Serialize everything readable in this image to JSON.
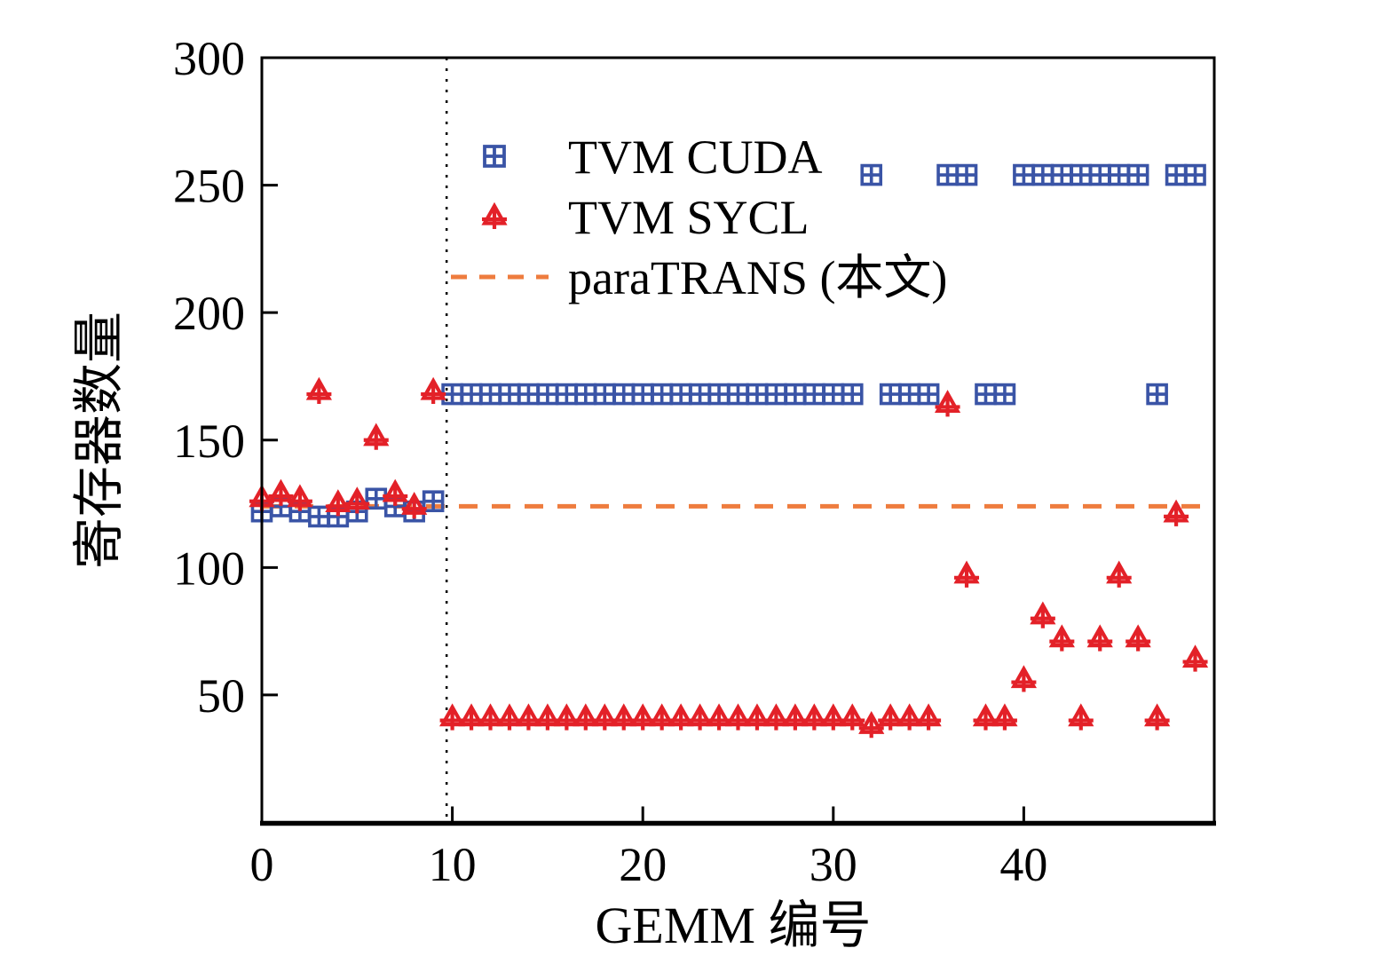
{
  "figure": {
    "background": "#ffffff"
  },
  "chart_data": {
    "type": "scatter",
    "title": "",
    "xlabel": "GEMM 编号",
    "ylabel": "寄存器数量",
    "xlim": [
      0,
      50
    ],
    "ylim": [
      0,
      300
    ],
    "xticks": [
      0,
      10,
      20,
      30,
      40
    ],
    "yticks": [
      50,
      100,
      150,
      200,
      250,
      300
    ],
    "grid": false,
    "legend_position": "upper-left-inside",
    "divider_vline": {
      "x": 9.7,
      "style": "dotted",
      "color": "#000000"
    },
    "series": [
      {
        "name": "TVM CUDA",
        "type": "scatter",
        "marker": "square-plus",
        "color": "#3a54a6",
        "x": [
          0,
          1,
          2,
          3,
          4,
          5,
          6,
          7,
          8,
          9,
          10,
          11,
          12,
          13,
          14,
          15,
          16,
          17,
          18,
          19,
          20,
          21,
          22,
          23,
          24,
          25,
          26,
          27,
          28,
          29,
          30,
          31,
          32,
          33,
          34,
          35,
          36,
          37,
          38,
          39,
          40,
          41,
          42,
          43,
          44,
          45,
          46,
          47,
          48,
          49
        ],
        "y": [
          122,
          124,
          122,
          120,
          120,
          122,
          127,
          124,
          122,
          126,
          168,
          168,
          168,
          168,
          168,
          168,
          168,
          168,
          168,
          168,
          168,
          168,
          168,
          168,
          168,
          168,
          168,
          168,
          168,
          168,
          168,
          168,
          254,
          168,
          168,
          168,
          254,
          254,
          168,
          168,
          254,
          254,
          254,
          254,
          254,
          254,
          254,
          168,
          254,
          254
        ]
      },
      {
        "name": "TVM SYCL",
        "type": "scatter",
        "marker": "triangle-plus",
        "color": "#e32128",
        "x": [
          0,
          1,
          2,
          3,
          4,
          5,
          6,
          7,
          8,
          9,
          10,
          11,
          12,
          13,
          14,
          15,
          16,
          17,
          18,
          19,
          20,
          21,
          22,
          23,
          24,
          25,
          26,
          27,
          28,
          29,
          30,
          31,
          32,
          33,
          34,
          35,
          36,
          37,
          38,
          39,
          40,
          41,
          42,
          43,
          44,
          45,
          46,
          47,
          48,
          49
        ],
        "y": [
          126,
          128,
          126,
          168,
          124,
          125,
          150,
          128,
          123,
          168,
          40,
          40,
          40,
          40,
          40,
          40,
          40,
          40,
          40,
          40,
          40,
          40,
          40,
          40,
          40,
          40,
          40,
          40,
          40,
          40,
          40,
          40,
          37,
          40,
          40,
          40,
          163,
          96,
          40,
          40,
          55,
          80,
          71,
          40,
          71,
          96,
          71,
          40,
          120,
          63
        ]
      },
      {
        "name": "paraTRANS (本文)",
        "type": "hline",
        "style": "dashed",
        "color": "#ee7c3e",
        "y": 124
      }
    ]
  }
}
